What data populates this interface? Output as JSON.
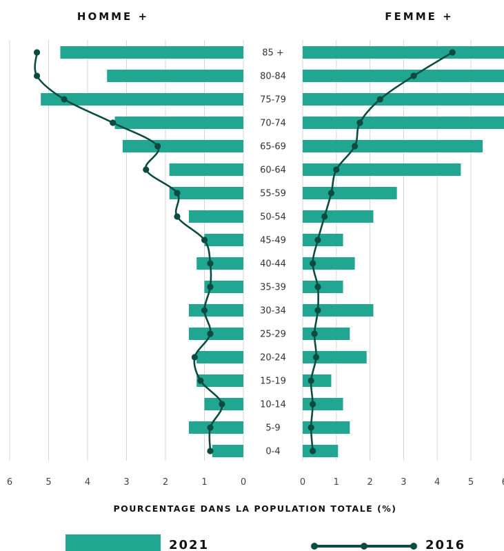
{
  "chart_data": {
    "type": "bar",
    "subtype": "population-pyramid",
    "title": "",
    "left_panel_title": "HOMME +",
    "right_panel_title": "FEMME +",
    "xlabel": "POURCENTAGE DANS LA POPULATION TOTALE (%)",
    "xlim": [
      0,
      6
    ],
    "x_ticks": [
      "0",
      "1",
      "2",
      "3",
      "4",
      "5",
      "6"
    ],
    "grid": true,
    "legend_position": "bottom",
    "categories": [
      "85 +",
      "80-84",
      "75-79",
      "70-74",
      "65-69",
      "60-64",
      "55-59",
      "50-54",
      "45-49",
      "40-44",
      "35-39",
      "30-34",
      "25-29",
      "20-24",
      "15-19",
      "10-14",
      "5-9",
      "0-4"
    ],
    "series": [
      {
        "name": "2021",
        "kind": "bar",
        "color": "#21a691",
        "homme": [
          4.7,
          3.5,
          5.2,
          3.3,
          3.1,
          1.9,
          1.9,
          1.4,
          1.0,
          1.2,
          1.0,
          1.4,
          1.4,
          1.2,
          1.2,
          1.0,
          1.4,
          0.8
        ],
        "femme": [
          6.2,
          6.2,
          6.2,
          6.2,
          5.35,
          4.7,
          2.8,
          2.1,
          1.2,
          1.55,
          1.2,
          2.1,
          1.4,
          1.9,
          0.85,
          1.2,
          1.4,
          1.05
        ]
      },
      {
        "name": "2016",
        "kind": "line",
        "color": "#0b4b40",
        "homme": [
          5.3,
          5.3,
          4.6,
          3.35,
          2.2,
          2.5,
          1.7,
          1.7,
          1.0,
          0.85,
          0.85,
          1.0,
          0.85,
          1.25,
          1.1,
          0.55,
          0.85,
          0.85
        ],
        "femme": [
          4.45,
          3.3,
          2.3,
          1.7,
          1.55,
          1.0,
          0.85,
          0.65,
          0.45,
          0.3,
          0.45,
          0.45,
          0.35,
          0.4,
          0.25,
          0.3,
          0.25,
          0.3
        ]
      }
    ]
  }
}
